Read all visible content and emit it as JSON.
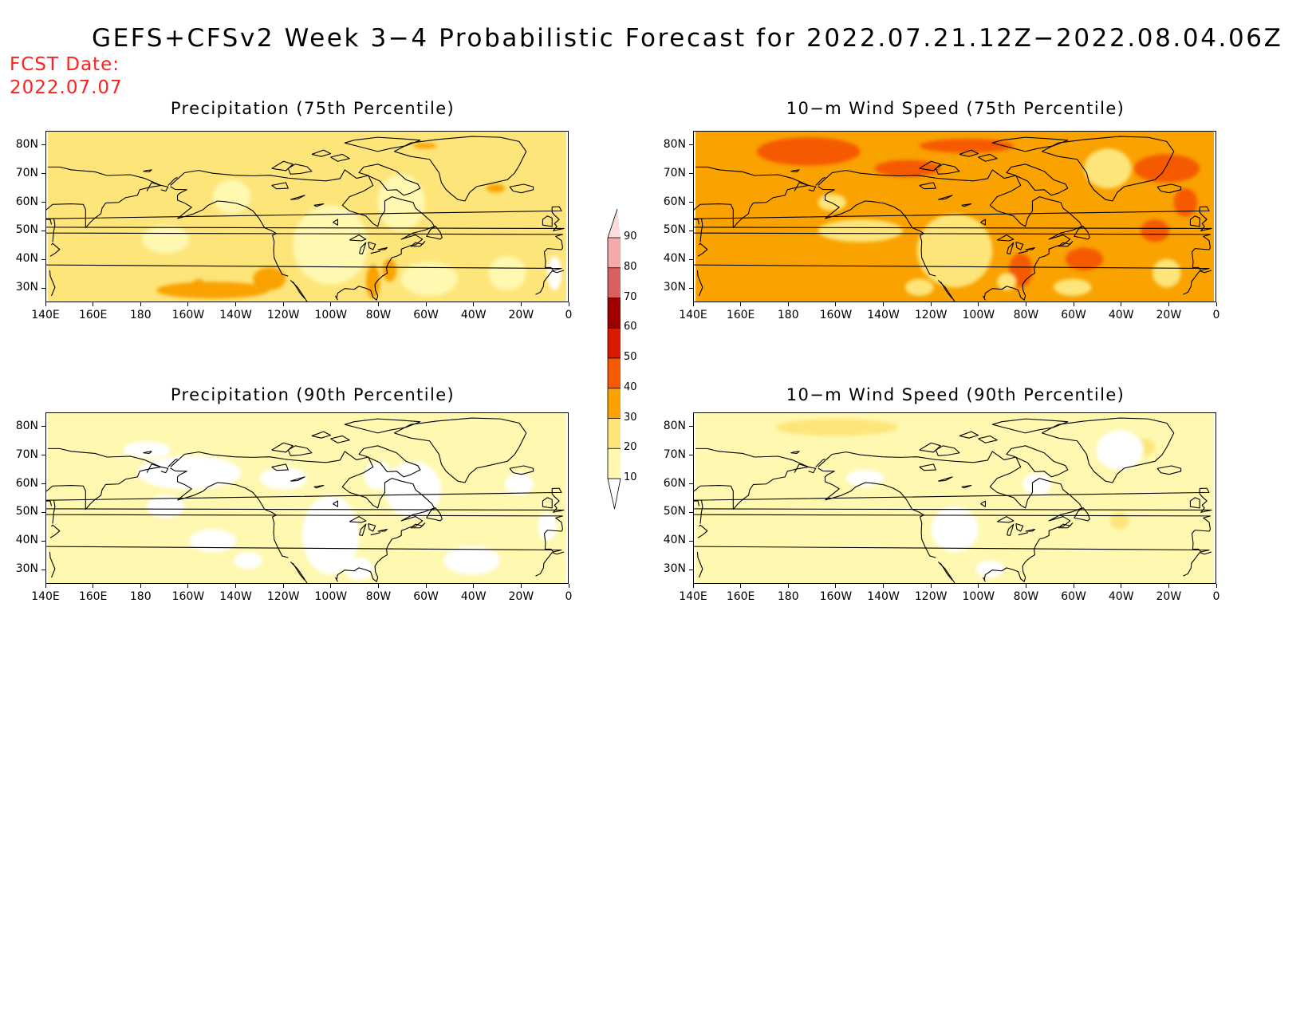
{
  "title": "GEFS+CFSv2 Week 3−4 Probabilistic Forecast for 2022.07.21.12Z−2022.08.04.06Z",
  "fcst_label": "FCST Date:",
  "fcst_value": "2022.07.07",
  "lon_labels": [
    "140E",
    "160E",
    "180",
    "160W",
    "140W",
    "120W",
    "100W",
    "80W",
    "60W",
    "40W",
    "20W",
    "0"
  ],
  "lat_labels": [
    "80N",
    "70N",
    "60N",
    "50N",
    "40N",
    "30N"
  ],
  "panels": [
    {
      "id": "precip75",
      "title": "Precipitation (75th Percentile)",
      "base_level": 20,
      "patches": [
        {
          "level": 30,
          "lon": -150,
          "lat": 29,
          "rx": 24,
          "ry": 3
        },
        {
          "level": 30,
          "lon": -126,
          "lat": 33,
          "rx": 7,
          "ry": 4
        },
        {
          "level": 30,
          "lon": -82,
          "lat": 32,
          "rx": 3,
          "ry": 6
        },
        {
          "level": 30,
          "lon": -75,
          "lat": 36,
          "rx": 3,
          "ry": 4
        },
        {
          "level": 30,
          "lon": -60,
          "lat": 80,
          "rx": 5,
          "ry": 1
        },
        {
          "level": 30,
          "lon": -30,
          "lat": 65,
          "rx": 4,
          "ry": 1.5
        },
        {
          "level": 30,
          "lon": -156,
          "lat": 30,
          "rx": 3,
          "ry": 3
        },
        {
          "level": 10,
          "lon": -100,
          "lat": 45,
          "rx": 16,
          "ry": 14
        },
        {
          "level": 10,
          "lon": -70,
          "lat": 60,
          "rx": 10,
          "ry": 10
        },
        {
          "level": 10,
          "lon": -58,
          "lat": 33,
          "rx": 12,
          "ry": 6
        },
        {
          "level": 10,
          "lon": -142,
          "lat": 62,
          "rx": 8,
          "ry": 6
        },
        {
          "level": 10,
          "lon": -25,
          "lat": 35,
          "rx": 8,
          "ry": 6
        },
        {
          "level": 10,
          "lon": -170,
          "lat": 47,
          "rx": 10,
          "ry": 5
        },
        {
          "level": 0,
          "lon": -5,
          "lat": 35,
          "rx": 3,
          "ry": 6
        }
      ]
    },
    {
      "id": "wind75",
      "title": "10−m Wind Speed (75th Percentile)",
      "base_level": 30,
      "patches": [
        {
          "level": 40,
          "lon": -172,
          "lat": 78,
          "rx": 22,
          "ry": 5
        },
        {
          "level": 40,
          "lon": -105,
          "lat": 80,
          "rx": 20,
          "ry": 2.5
        },
        {
          "level": 40,
          "lon": -20,
          "lat": 72,
          "rx": 14,
          "ry": 5
        },
        {
          "level": 40,
          "lon": -130,
          "lat": 72,
          "rx": 14,
          "ry": 3
        },
        {
          "level": 40,
          "lon": -82,
          "lat": 36,
          "rx": 5,
          "ry": 6
        },
        {
          "level": 40,
          "lon": -55,
          "lat": 40,
          "rx": 8,
          "ry": 4
        },
        {
          "level": 40,
          "lon": -12,
          "lat": 60,
          "rx": 5,
          "ry": 5
        },
        {
          "level": 40,
          "lon": -25,
          "lat": 50,
          "rx": 6,
          "ry": 4
        },
        {
          "level": 20,
          "lon": -45,
          "lat": 72,
          "rx": 10,
          "ry": 7
        },
        {
          "level": 20,
          "lon": -110,
          "lat": 43,
          "rx": 16,
          "ry": 13
        },
        {
          "level": 20,
          "lon": -150,
          "lat": 50,
          "rx": 18,
          "ry": 4
        },
        {
          "level": 20,
          "lon": -162,
          "lat": 60,
          "rx": 6,
          "ry": 3
        },
        {
          "level": 20,
          "lon": -125,
          "lat": 30,
          "rx": 6,
          "ry": 3
        },
        {
          "level": 20,
          "lon": -60,
          "lat": 30,
          "rx": 8,
          "ry": 3
        },
        {
          "level": 20,
          "lon": -20,
          "lat": 35,
          "rx": 6,
          "ry": 5
        },
        {
          "level": 20,
          "lon": -88,
          "lat": 32,
          "rx": 4,
          "ry": 3
        }
      ]
    },
    {
      "id": "precip90",
      "title": "Precipitation (90th Percentile)",
      "base_level": 10,
      "patches": [
        {
          "level": 0,
          "lon": -160,
          "lat": 64,
          "rx": 22,
          "ry": 6
        },
        {
          "level": 0,
          "lon": -100,
          "lat": 42,
          "rx": 12,
          "ry": 14
        },
        {
          "level": 0,
          "lon": -65,
          "lat": 58,
          "rx": 12,
          "ry": 10
        },
        {
          "level": 0,
          "lon": -150,
          "lat": 40,
          "rx": 10,
          "ry": 4
        },
        {
          "level": 0,
          "lon": -40,
          "lat": 33,
          "rx": 12,
          "ry": 5
        },
        {
          "level": 0,
          "lon": -170,
          "lat": 52,
          "rx": 8,
          "ry": 4
        },
        {
          "level": 0,
          "lon": -135,
          "lat": 33,
          "rx": 6,
          "ry": 3
        },
        {
          "level": 0,
          "lon": -88,
          "lat": 30,
          "rx": 6,
          "ry": 4
        },
        {
          "level": 0,
          "lon": -20,
          "lat": 60,
          "rx": 6,
          "ry": 4
        },
        {
          "level": 0,
          "lon": -178,
          "lat": 72,
          "rx": 10,
          "ry": 3
        },
        {
          "level": 0,
          "lon": -8,
          "lat": 45,
          "rx": 4,
          "ry": 5
        },
        {
          "level": 0,
          "lon": -120,
          "lat": 62,
          "rx": 10,
          "ry": 4
        },
        {
          "level": 0,
          "lon": -80,
          "lat": 63,
          "rx": 6,
          "ry": 5
        }
      ]
    },
    {
      "id": "wind90",
      "title": "10−m Wind Speed (90th Percentile)",
      "base_level": 10,
      "patches": [
        {
          "level": 20,
          "lon": -160,
          "lat": 80,
          "rx": 26,
          "ry": 3
        },
        {
          "level": 20,
          "lon": -40,
          "lat": 47,
          "rx": 4,
          "ry": 3
        },
        {
          "level": 20,
          "lon": -30,
          "lat": 73,
          "rx": 5,
          "ry": 3
        },
        {
          "level": 0,
          "lon": -40,
          "lat": 72,
          "rx": 10,
          "ry": 7
        },
        {
          "level": 0,
          "lon": -110,
          "lat": 44,
          "rx": 10,
          "ry": 8
        },
        {
          "level": 0,
          "lon": -148,
          "lat": 62,
          "rx": 8,
          "ry": 3
        },
        {
          "level": 0,
          "lon": -95,
          "lat": 30,
          "rx": 6,
          "ry": 3
        },
        {
          "level": 0,
          "lon": -75,
          "lat": 60,
          "rx": 6,
          "ry": 4
        }
      ]
    }
  ],
  "colorbar": {
    "levels": [
      10,
      20,
      30,
      40,
      50,
      60,
      70,
      80,
      90
    ],
    "colors": [
      "#ffffff",
      "#fff8b0",
      "#fde57a",
      "#f9a200",
      "#f55a00",
      "#d91a00",
      "#a10000",
      "#d86060",
      "#f3aaaa",
      "#fbdcdc"
    ]
  },
  "colors": {
    "title": "#000000",
    "fcst": "#ff2020",
    "coast": "#000000",
    "border": "#000000"
  }
}
